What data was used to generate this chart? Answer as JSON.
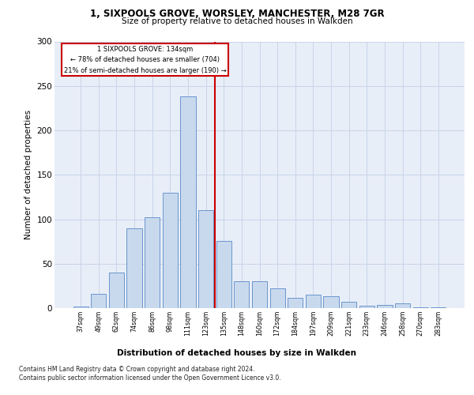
{
  "title_line1": "1, SIXPOOLS GROVE, WORSLEY, MANCHESTER, M28 7GR",
  "title_line2": "Size of property relative to detached houses in Walkden",
  "xlabel": "Distribution of detached houses by size in Walkden",
  "ylabel": "Number of detached properties",
  "categories": [
    "37sqm",
    "49sqm",
    "62sqm",
    "74sqm",
    "86sqm",
    "98sqm",
    "111sqm",
    "123sqm",
    "135sqm",
    "148sqm",
    "160sqm",
    "172sqm",
    "184sqm",
    "197sqm",
    "209sqm",
    "221sqm",
    "233sqm",
    "246sqm",
    "258sqm",
    "270sqm",
    "283sqm"
  ],
  "values": [
    2,
    16,
    40,
    90,
    102,
    130,
    238,
    110,
    76,
    30,
    30,
    22,
    12,
    15,
    13,
    7,
    3,
    4,
    5,
    1,
    1
  ],
  "bar_color": "#c8d9ee",
  "bar_edge_color": "#5a8ac6",
  "grid_color": "#c8d4e8",
  "background_color": "#e8eef8",
  "vline_color": "#cc0000",
  "annotation_text": "1 SIXPOOLS GROVE: 134sqm\n← 78% of detached houses are smaller (704)\n21% of semi-detached houses are larger (190) →",
  "annotation_box_color": "#cc0000",
  "footer_line1": "Contains HM Land Registry data © Crown copyright and database right 2024.",
  "footer_line2": "Contains public sector information licensed under the Open Government Licence v3.0.",
  "ylim": [
    0,
    300
  ],
  "yticks": [
    0,
    50,
    100,
    150,
    200,
    250,
    300
  ]
}
